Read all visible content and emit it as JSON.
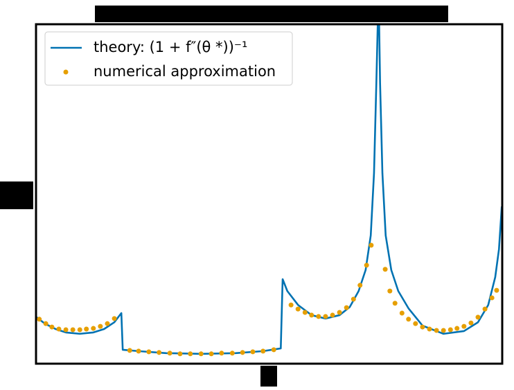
{
  "chart_data": {
    "type": "line",
    "xlim": [
      0,
      1
    ],
    "ylim": [
      0,
      1
    ],
    "legend": "upper left",
    "series": [
      {
        "name": "theory: (1 + f″(θ *))⁻¹",
        "color": "#0072b2",
        "style": "line",
        "x": [
          0.001,
          0.019,
          0.042,
          0.064,
          0.094,
          0.123,
          0.146,
          0.168,
          0.183,
          0.186,
          0.22,
          0.279,
          0.354,
          0.428,
          0.487,
          0.525,
          0.529,
          0.539,
          0.562,
          0.591,
          0.621,
          0.651,
          0.673,
          0.692,
          0.707,
          0.718,
          0.725,
          0.73,
          0.733,
          0.736,
          0.738,
          0.743,
          0.75,
          0.762,
          0.777,
          0.799,
          0.829,
          0.874,
          0.918,
          0.948,
          0.97,
          0.985,
          0.993,
          0.999
        ],
        "values": [
          0.137,
          0.118,
          0.102,
          0.092,
          0.088,
          0.092,
          0.102,
          0.122,
          0.149,
          0.041,
          0.037,
          0.031,
          0.029,
          0.031,
          0.037,
          0.045,
          0.249,
          0.214,
          0.173,
          0.143,
          0.133,
          0.143,
          0.167,
          0.214,
          0.276,
          0.378,
          0.561,
          0.827,
          1.0,
          1.0,
          0.827,
          0.561,
          0.378,
          0.276,
          0.214,
          0.163,
          0.112,
          0.088,
          0.096,
          0.122,
          0.173,
          0.255,
          0.337,
          0.463
        ]
      },
      {
        "name": "numerical approximation",
        "color": "#e69f00",
        "style": "markers",
        "x": [
          0.007,
          0.021,
          0.034,
          0.049,
          0.064,
          0.079,
          0.094,
          0.108,
          0.123,
          0.138,
          0.153,
          0.168,
          0.201,
          0.22,
          0.242,
          0.264,
          0.287,
          0.309,
          0.331,
          0.354,
          0.376,
          0.398,
          0.421,
          0.443,
          0.465,
          0.487,
          0.51,
          0.547,
          0.562,
          0.577,
          0.591,
          0.606,
          0.621,
          0.636,
          0.651,
          0.666,
          0.681,
          0.695,
          0.709,
          0.719,
          0.749,
          0.759,
          0.77,
          0.785,
          0.799,
          0.814,
          0.829,
          0.844,
          0.859,
          0.874,
          0.889,
          0.903,
          0.918,
          0.933,
          0.948,
          0.963,
          0.978,
          0.988
        ],
        "values": [
          0.131,
          0.118,
          0.108,
          0.102,
          0.1,
          0.1,
          0.1,
          0.102,
          0.104,
          0.11,
          0.118,
          0.133,
          0.039,
          0.037,
          0.035,
          0.033,
          0.031,
          0.029,
          0.029,
          0.029,
          0.029,
          0.031,
          0.031,
          0.033,
          0.035,
          0.037,
          0.041,
          0.173,
          0.161,
          0.151,
          0.143,
          0.139,
          0.139,
          0.143,
          0.151,
          0.165,
          0.19,
          0.231,
          0.29,
          0.349,
          0.278,
          0.214,
          0.178,
          0.149,
          0.131,
          0.118,
          0.108,
          0.102,
          0.098,
          0.098,
          0.1,
          0.104,
          0.11,
          0.12,
          0.137,
          0.161,
          0.194,
          0.216
        ]
      }
    ]
  }
}
